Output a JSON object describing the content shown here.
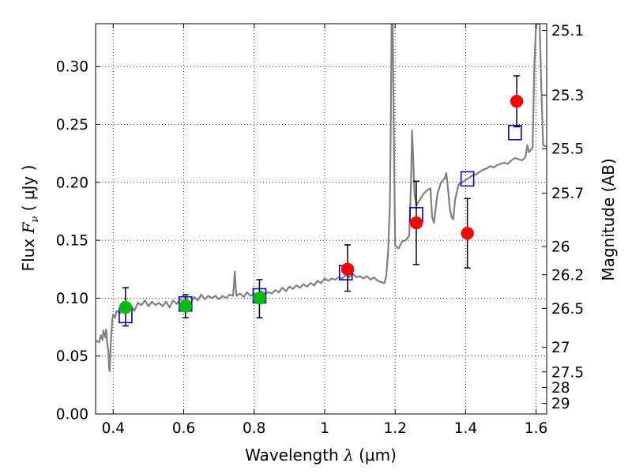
{
  "chart_data": {
    "type": "scatter",
    "xlabel": {
      "prefix": "Wavelength  ",
      "var": "λ",
      "unit": " (μm)"
    },
    "ylabel": {
      "prefix": "Flux  ",
      "var": "F",
      "sub": "ν",
      "unit": "  ( μJy )"
    },
    "ylabel_right": "Magnitude (AB)",
    "xlim": [
      0.35,
      1.63
    ],
    "ylim": [
      0.0,
      0.337
    ],
    "grid": true,
    "x_ticks": [
      {
        "value": 0.4,
        "label": "0.4"
      },
      {
        "value": 0.6,
        "label": "0.6"
      },
      {
        "value": 0.8,
        "label": "0.8"
      },
      {
        "value": 1.0,
        "label": "1"
      },
      {
        "value": 1.2,
        "label": "1.2"
      },
      {
        "value": 1.4,
        "label": "1.4"
      },
      {
        "value": 1.6,
        "label": "1.6"
      }
    ],
    "y_ticks": [
      {
        "value": 0.0,
        "label": "0.00"
      },
      {
        "value": 0.05,
        "label": "0.05"
      },
      {
        "value": 0.1,
        "label": "0.10"
      },
      {
        "value": 0.15,
        "label": "0.15"
      },
      {
        "value": 0.2,
        "label": "0.20"
      },
      {
        "value": 0.25,
        "label": "0.25"
      },
      {
        "value": 0.3,
        "label": "0.30"
      }
    ],
    "y2_ticks": [
      {
        "value": 25.1,
        "label": "25.1"
      },
      {
        "value": 25.3,
        "label": "25.3"
      },
      {
        "value": 25.5,
        "label": "25.5"
      },
      {
        "value": 25.7,
        "label": "25.7"
      },
      {
        "value": 26.0,
        "label": "26"
      },
      {
        "value": 26.2,
        "label": "26.2"
      },
      {
        "value": 26.5,
        "label": "26.5"
      },
      {
        "value": 27.0,
        "label": "27"
      },
      {
        "value": 27.5,
        "label": "27.5"
      },
      {
        "value": 28.0,
        "label": "28"
      },
      {
        "value": 29.0,
        "label": "29"
      }
    ],
    "series": [
      {
        "style": "line",
        "color": "#808080",
        "points": [
          [
            0.35,
            0.063
          ],
          [
            0.36,
            0.062
          ],
          [
            0.365,
            0.068
          ],
          [
            0.37,
            0.064
          ],
          [
            0.372,
            0.072
          ],
          [
            0.375,
            0.069
          ],
          [
            0.378,
            0.066
          ],
          [
            0.38,
            0.073
          ],
          [
            0.383,
            0.061
          ],
          [
            0.386,
            0.055
          ],
          [
            0.388,
            0.04
          ],
          [
            0.39,
            0.037
          ],
          [
            0.393,
            0.06
          ],
          [
            0.397,
            0.08
          ],
          [
            0.4,
            0.086
          ],
          [
            0.405,
            0.083
          ],
          [
            0.41,
            0.089
          ],
          [
            0.42,
            0.087
          ],
          [
            0.43,
            0.093
          ],
          [
            0.44,
            0.091
          ],
          [
            0.45,
            0.094
          ],
          [
            0.46,
            0.089
          ],
          [
            0.47,
            0.096
          ],
          [
            0.48,
            0.094
          ],
          [
            0.49,
            0.098
          ],
          [
            0.5,
            0.093
          ],
          [
            0.51,
            0.097
          ],
          [
            0.52,
            0.094
          ],
          [
            0.53,
            0.096
          ],
          [
            0.54,
            0.093
          ],
          [
            0.55,
            0.097
          ],
          [
            0.56,
            0.092
          ],
          [
            0.57,
            0.098
          ],
          [
            0.58,
            0.095
          ],
          [
            0.59,
            0.099
          ],
          [
            0.6,
            0.097
          ],
          [
            0.61,
            0.099
          ],
          [
            0.62,
            0.096
          ],
          [
            0.63,
            0.101
          ],
          [
            0.64,
            0.098
          ],
          [
            0.65,
            0.103
          ],
          [
            0.66,
            0.099
          ],
          [
            0.67,
            0.102
          ],
          [
            0.68,
            0.1
          ],
          [
            0.69,
            0.102
          ],
          [
            0.7,
            0.099
          ],
          [
            0.71,
            0.102
          ],
          [
            0.72,
            0.1
          ],
          [
            0.73,
            0.103
          ],
          [
            0.74,
            0.102
          ],
          [
            0.742,
            0.11
          ],
          [
            0.745,
            0.123
          ],
          [
            0.748,
            0.108
          ],
          [
            0.75,
            0.102
          ],
          [
            0.76,
            0.104
          ],
          [
            0.77,
            0.101
          ],
          [
            0.78,
            0.105
          ],
          [
            0.79,
            0.102
          ],
          [
            0.8,
            0.104
          ],
          [
            0.81,
            0.103
          ],
          [
            0.82,
            0.106
          ],
          [
            0.83,
            0.104
          ],
          [
            0.84,
            0.105
          ],
          [
            0.85,
            0.104
          ],
          [
            0.86,
            0.107
          ],
          [
            0.87,
            0.105
          ],
          [
            0.88,
            0.109
          ],
          [
            0.89,
            0.106
          ],
          [
            0.9,
            0.11
          ],
          [
            0.91,
            0.108
          ],
          [
            0.92,
            0.111
          ],
          [
            0.93,
            0.109
          ],
          [
            0.94,
            0.112
          ],
          [
            0.95,
            0.11
          ],
          [
            0.96,
            0.113
          ],
          [
            0.97,
            0.111
          ],
          [
            0.98,
            0.115
          ],
          [
            0.99,
            0.113
          ],
          [
            1.0,
            0.117
          ],
          [
            1.01,
            0.115
          ],
          [
            1.02,
            0.117
          ],
          [
            1.03,
            0.116
          ],
          [
            1.04,
            0.118
          ],
          [
            1.05,
            0.117
          ],
          [
            1.06,
            0.12
          ],
          [
            1.07,
            0.118
          ],
          [
            1.08,
            0.121
          ],
          [
            1.09,
            0.118
          ],
          [
            1.1,
            0.119
          ],
          [
            1.11,
            0.117
          ],
          [
            1.12,
            0.119
          ],
          [
            1.13,
            0.116
          ],
          [
            1.14,
            0.118
          ],
          [
            1.15,
            0.115
          ],
          [
            1.16,
            0.114
          ],
          [
            1.17,
            0.113
          ],
          [
            1.175,
            0.12
          ],
          [
            1.18,
            0.14
          ],
          [
            1.185,
            0.18
          ],
          [
            1.188,
            0.26
          ],
          [
            1.19,
            0.337
          ],
          [
            1.193,
            0.337
          ],
          [
            1.196,
            0.25
          ],
          [
            1.2,
            0.145
          ],
          [
            1.21,
            0.143
          ],
          [
            1.22,
            0.149
          ],
          [
            1.23,
            0.15
          ],
          [
            1.24,
            0.154
          ],
          [
            1.245,
            0.2
          ],
          [
            1.248,
            0.245
          ],
          [
            1.25,
            0.23
          ],
          [
            1.255,
            0.19
          ],
          [
            1.26,
            0.18
          ],
          [
            1.27,
            0.185
          ],
          [
            1.28,
            0.19
          ],
          [
            1.29,
            0.193
          ],
          [
            1.3,
            0.195
          ],
          [
            1.305,
            0.17
          ],
          [
            1.31,
            0.165
          ],
          [
            1.32,
            0.19
          ],
          [
            1.33,
            0.2
          ],
          [
            1.34,
            0.203
          ],
          [
            1.345,
            0.208
          ],
          [
            1.35,
            0.195
          ],
          [
            1.355,
            0.178
          ],
          [
            1.36,
            0.17
          ],
          [
            1.365,
            0.168
          ],
          [
            1.37,
            0.185
          ],
          [
            1.38,
            0.198
          ],
          [
            1.39,
            0.2
          ],
          [
            1.4,
            0.202
          ],
          [
            1.41,
            0.204
          ],
          [
            1.42,
            0.206
          ],
          [
            1.43,
            0.207
          ],
          [
            1.44,
            0.209
          ],
          [
            1.45,
            0.211
          ],
          [
            1.46,
            0.212
          ],
          [
            1.47,
            0.214
          ],
          [
            1.48,
            0.213
          ],
          [
            1.49,
            0.215
          ],
          [
            1.5,
            0.216
          ],
          [
            1.51,
            0.217
          ],
          [
            1.52,
            0.216
          ],
          [
            1.53,
            0.219
          ],
          [
            1.54,
            0.221
          ],
          [
            1.55,
            0.22
          ],
          [
            1.56,
            0.219
          ],
          [
            1.57,
            0.222
          ],
          [
            1.575,
            0.232
          ],
          [
            1.58,
            0.226
          ],
          [
            1.59,
            0.23
          ],
          [
            1.595,
            0.3
          ],
          [
            1.6,
            0.337
          ],
          [
            1.605,
            0.337
          ],
          [
            1.61,
            0.337
          ],
          [
            1.615,
            0.28
          ],
          [
            1.62,
            0.232
          ],
          [
            1.63,
            0.231
          ]
        ]
      },
      {
        "style": "points",
        "marker": "open-square",
        "color": "#0000cc",
        "x": [
          0.435,
          0.605,
          0.815,
          1.06,
          1.26,
          1.405,
          1.54
        ],
        "y": [
          0.085,
          0.095,
          0.102,
          0.122,
          0.172,
          0.203,
          0.243
        ]
      },
      {
        "style": "points",
        "marker": "filled-circle",
        "color": "#00bf00",
        "x": [
          0.435,
          0.605,
          0.815
        ],
        "y": [
          0.092,
          0.093,
          0.1
        ],
        "yerr_low": [
          0.076,
          0.083,
          0.083
        ],
        "yerr_high": [
          0.109,
          0.103,
          0.116
        ]
      },
      {
        "style": "points",
        "marker": "filled-circle",
        "color": "#ff0000",
        "x": [
          1.065,
          1.26,
          1.405,
          1.545
        ],
        "y": [
          0.125,
          0.165,
          0.156,
          0.27
        ],
        "yerr_low": [
          0.106,
          0.129,
          0.126,
          0.248
        ],
        "yerr_high": [
          0.146,
          0.201,
          0.186,
          0.292
        ]
      }
    ]
  }
}
